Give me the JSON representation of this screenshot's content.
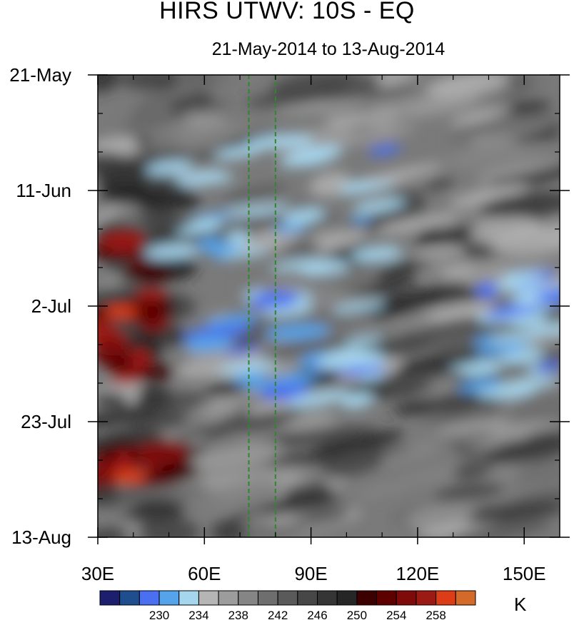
{
  "chart_data": {
    "type": "heatmap",
    "title": "HIRS UTWV: 10S - EQ",
    "subtitle": "21-May-2014 to 13-Aug-2014",
    "xlabel": "",
    "ylabel": "",
    "x_range": [
      30,
      160
    ],
    "x_ticks": [
      30,
      60,
      90,
      120,
      150
    ],
    "x_tick_labels": [
      "30E",
      "60E",
      "90E",
      "120E",
      "150E"
    ],
    "y_range_days": [
      0,
      84
    ],
    "y_ticks_days": [
      0,
      21,
      42,
      63,
      84
    ],
    "y_tick_labels": [
      "21-May",
      "11-Jun",
      "2-Jul",
      "23-Jul",
      "13-Aug"
    ],
    "y_direction": "time increases downward",
    "reference_lines_lon": [
      72.5,
      80
    ],
    "reference_line_color": "#2a8a2a",
    "colorbar": {
      "units": "K",
      "colors": [
        "#1c1f6e",
        "#1f4e8f",
        "#4a6ff0",
        "#55a3ea",
        "#a6d6ee",
        "#b5b5b5",
        "#9c9c9c",
        "#858585",
        "#6e6e6e",
        "#5a5a5a",
        "#474747",
        "#353535",
        "#262626",
        "#3d0000",
        "#5e0000",
        "#7f0a0a",
        "#9c1a14",
        "#dc3c16",
        "#d46a2a"
      ],
      "tick_labels": [
        "230",
        "234",
        "238",
        "242",
        "246",
        "250",
        "254",
        "258"
      ]
    },
    "value_note": "Upper-tropospheric water vapour brightness temperature (K); darker = warmer/drier, blue = colder/moister, red = warmest",
    "hot_regions": [
      {
        "lon": [
          30,
          47
        ],
        "date_days": [
          26,
          56
        ],
        "level": "254-262 K"
      },
      {
        "lon": [
          30,
          52
        ],
        "date_days": [
          68,
          74
        ],
        "level": "254-262 K"
      }
    ],
    "cold_regions": [
      {
        "lon": [
          50,
          112
        ],
        "date_days": [
          12,
          38
        ],
        "level": "230-238 K"
      },
      {
        "lon": [
          60,
          110
        ],
        "date_days": [
          40,
          60
        ],
        "level": "234-238 K"
      },
      {
        "lon": [
          135,
          160
        ],
        "date_days": [
          36,
          58
        ],
        "level": "234-238 K"
      }
    ]
  }
}
